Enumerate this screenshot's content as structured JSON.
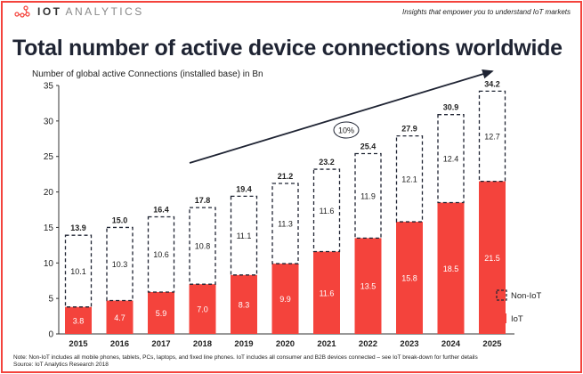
{
  "header": {
    "logo_text_bold": "IOT",
    "logo_text_light": "ANALYTICS",
    "tagline": "Insights that empower you to understand IoT markets"
  },
  "colors": {
    "iot": "#f4433c",
    "non_iot_border": "#1f2433",
    "text": "#1f2433"
  },
  "footer": {
    "note": "Note: Non-IoT includes all mobile phones, tablets, PCs, laptops, and fixed line phones. IoT includes all consumer and B2B devices connected – see IoT break-down for further details",
    "source": "Source: IoT Analytics Research 2018"
  },
  "chart_data": {
    "type": "bar",
    "stacked": true,
    "title": "Total number of active device connections worldwide",
    "ylabel": "Number of global active Connections (installed base) in Bn",
    "ylim": [
      0,
      35
    ],
    "yticks": [
      0,
      5,
      10,
      15,
      20,
      25,
      30,
      35
    ],
    "categories": [
      "2015",
      "2016",
      "2017",
      "2018",
      "2019",
      "2020",
      "2021",
      "2022",
      "2023",
      "2024",
      "2025"
    ],
    "series": [
      {
        "name": "IoT",
        "values": [
          3.8,
          4.7,
          5.9,
          7.0,
          8.3,
          9.9,
          11.6,
          13.5,
          15.8,
          18.5,
          21.5
        ],
        "style": "solid red"
      },
      {
        "name": "Non-IoT",
        "values": [
          10.1,
          10.3,
          10.6,
          10.8,
          11.1,
          11.3,
          11.6,
          11.9,
          12.1,
          12.4,
          12.7
        ],
        "style": "dashed outline"
      }
    ],
    "totals": [
      "13.9",
      "15.0",
      "16.4",
      "17.8",
      "19.4",
      "21.2",
      "23.2",
      "25.4",
      "27.9",
      "30.9",
      "34.2"
    ],
    "annotation": {
      "label": "10%",
      "from": "2018",
      "to": "2025"
    },
    "legend": "right",
    "grid": false
  }
}
